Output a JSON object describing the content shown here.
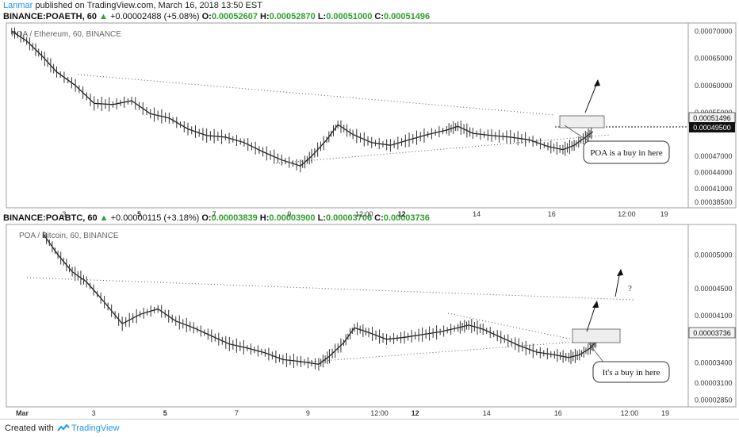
{
  "header": {
    "author": "Lanmar",
    "published_text": "published on TradingView.com, March 16, 2018 13:50 EST"
  },
  "footer": {
    "created_with": "Created with",
    "brand": "TradingView"
  },
  "panels": [
    {
      "symbol": "BINANCE:POAETH, 60",
      "change": "+0.00002488 (+5.08%)",
      "o": "0.00052607",
      "h": "0.00052870",
      "l": "0.00051000",
      "c": "0.00051496",
      "watermark": "POA / Ethereum, 60, BINANCE",
      "price_label": "0.00051496",
      "line_label": "0.00049500",
      "annotation": "POA is a buy in here",
      "question": ""
    },
    {
      "symbol": "BINANCE:POABTC, 60",
      "change": "+0.00000115 (+3.18%)",
      "o": "0.00003839",
      "h": "0.00003900",
      "l": "0.00003706",
      "c": "0.00003736",
      "watermark": "POA / Bitcoin, 60, BINANCE",
      "price_label": "0.00003736",
      "line_label": "",
      "annotation": "It's a buy in here",
      "question": "?"
    }
  ],
  "chart_data": [
    {
      "type": "line",
      "title": "POA / Ethereum, 60, BINANCE",
      "x_ticks": [
        "3",
        "5",
        "7",
        "9",
        "12:00",
        "12",
        "14",
        "16",
        "12:00",
        "19"
      ],
      "y_ticks": [
        "0.00070000",
        "0.00065000",
        "0.00060000",
        "0.00055000",
        "0.00051496",
        "0.00049500",
        "0.00047000",
        "0.00044000",
        "0.00041000",
        "0.00038500"
      ],
      "ylim": [
        0.000375,
        0.000715
      ],
      "series": [
        {
          "x": [
            1.6,
            2.0,
            2.4,
            2.8,
            3.3,
            3.8,
            4.3,
            4.8,
            5.3,
            5.8,
            6.3,
            6.8,
            7.3,
            7.8,
            8.3,
            8.8,
            9.3,
            9.6,
            10.0,
            10.3,
            10.7,
            11.2,
            11.7,
            12.2,
            12.7,
            13.2,
            13.5,
            13.9,
            14.4,
            14.9,
            15.4,
            15.9,
            16.3,
            16.6,
            16.9,
            17.1
          ],
          "values": [
            0.0007,
            0.000682,
            0.000655,
            0.000625,
            0.0006,
            0.000567,
            0.000565,
            0.000572,
            0.000548,
            0.00054,
            0.00052,
            0.000508,
            0.000505,
            0.000495,
            0.000478,
            0.000463,
            0.000452,
            0.00047,
            0.0005,
            0.000528,
            0.00051,
            0.000495,
            0.00049,
            0.0005,
            0.00051,
            0.000518,
            0.000525,
            0.000512,
            0.000508,
            0.000505,
            0.0005,
            0.000488,
            0.000482,
            0.00049,
            0.000505,
            0.000515
          ]
        }
      ],
      "horizontal_line": 0.000495,
      "last_price": 0.00051496
    },
    {
      "type": "line",
      "title": "POA / Bitcoin, 60, BINANCE",
      "x_ticks": [
        "Mar",
        "3",
        "5",
        "7",
        "9",
        "12:00",
        "12",
        "14",
        "16",
        "12:00",
        "19"
      ],
      "y_ticks": [
        "0.00005000",
        "0.00004500",
        "0.00004100",
        "0.00003736",
        "0.00003400",
        "0.00003100",
        "0.00002850"
      ],
      "ylim": [
        2.75e-05,
        5.45e-05
      ],
      "series": [
        {
          "x": [
            1.6,
            2.0,
            2.4,
            2.8,
            3.3,
            3.8,
            4.3,
            4.8,
            5.3,
            5.8,
            6.3,
            6.8,
            7.3,
            7.8,
            8.3,
            8.8,
            9.3,
            9.6,
            10.0,
            10.3,
            10.7,
            11.2,
            11.7,
            12.2,
            12.7,
            13.2,
            13.5,
            13.9,
            14.4,
            14.9,
            15.4,
            15.9,
            16.3,
            16.6,
            16.9,
            17.1
          ],
          "values": [
            5.3e-05,
            5e-05,
            4.75e-05,
            4.6e-05,
            4.3e-05,
            3.98e-05,
            4.12e-05,
            4.2e-05,
            4.02e-05,
            3.92e-05,
            3.8e-05,
            3.68e-05,
            3.62e-05,
            3.55e-05,
            3.45e-05,
            3.42e-05,
            3.38e-05,
            3.5e-05,
            3.7e-05,
            3.92e-05,
            3.85e-05,
            3.75e-05,
            3.78e-05,
            3.82e-05,
            3.86e-05,
            3.92e-05,
            3.96e-05,
            3.9e-05,
            3.78e-05,
            3.66e-05,
            3.56e-05,
            3.52e-05,
            3.48e-05,
            3.52e-05,
            3.62e-05,
            3.74e-05
          ]
        }
      ],
      "last_price": 3.736e-05
    }
  ]
}
